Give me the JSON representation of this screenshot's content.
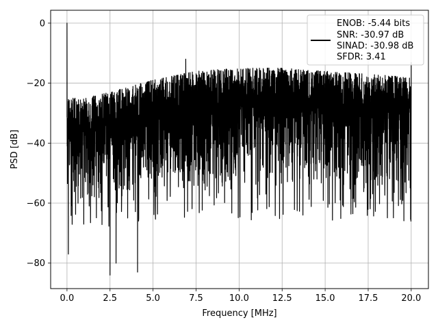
{
  "chart_data": {
    "type": "line",
    "title": "",
    "xlabel": "Frequency [MHz]",
    "ylabel": "PSD [dB]",
    "xlim": [
      -0.95,
      21.0
    ],
    "ylim": [
      -88.5,
      4.3
    ],
    "xticks": [
      0.0,
      2.5,
      5.0,
      7.5,
      10.0,
      12.5,
      15.0,
      17.5,
      20.0
    ],
    "xtick_labels": [
      "0.0",
      "2.5",
      "5.0",
      "7.5",
      "10.0",
      "12.5",
      "15.0",
      "17.5",
      "20.0"
    ],
    "yticks": [
      0,
      -20,
      -40,
      -60,
      -80
    ],
    "ytick_labels": [
      "0",
      "−20",
      "−40",
      "−60",
      "−80"
    ],
    "grid": true,
    "legend_position": "top-right",
    "legend_entries": [
      "ENOB: -5.44 bits",
      "SNR: -30.97 dB",
      "SINAD: -30.98 dB",
      "SFDR: 3.41"
    ],
    "series": [
      {
        "color": "#000000",
        "peak": {
          "x": 0.0,
          "y": 0.0
        },
        "upper_envelope": {
          "x": [
            0.0,
            1.0,
            2.5,
            5.0,
            7.5,
            10.0,
            12.5,
            15.0,
            17.5,
            20.0
          ],
          "y": [
            -25,
            -25,
            -23,
            -19,
            -16,
            -15,
            -15,
            -16,
            -17,
            -18
          ]
        },
        "lower_envelope": {
          "x": [
            0.0,
            2.5,
            5.0,
            7.5,
            10.0,
            12.5,
            15.0,
            17.5,
            20.0
          ],
          "y": [
            -62,
            -58,
            -56,
            -56,
            -56,
            -56,
            -56,
            -57,
            -56
          ]
        },
        "notable_points": [
          {
            "x": 0.08,
            "y": -77
          },
          {
            "x": 2.5,
            "y": -84
          },
          {
            "x": 2.85,
            "y": -80
          },
          {
            "x": 4.1,
            "y": -83
          },
          {
            "x": 6.9,
            "y": -12
          },
          {
            "x": 20.0,
            "y": -13
          }
        ]
      }
    ]
  }
}
